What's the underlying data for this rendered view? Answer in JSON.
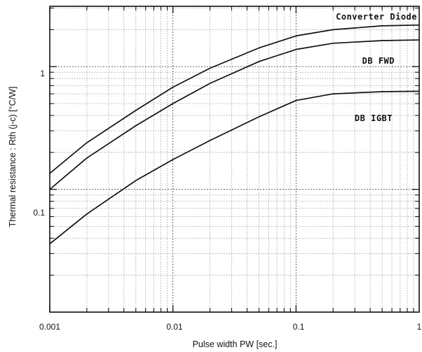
{
  "chart_data": {
    "type": "line",
    "title": "",
    "xlabel": "Pulse width  PW  [sec.]",
    "ylabel": "Thermal resistance  :  Rth (j-c)  [°C/W]",
    "xscale": "log",
    "yscale": "log",
    "xlim": [
      0.001,
      1
    ],
    "ylim": [
      0.01,
      3.1
    ],
    "grid": true,
    "x_tick_labels": [
      "0.001",
      "0.01",
      "0.1",
      "1"
    ],
    "y_tick_labels": [
      "0.1",
      "1"
    ],
    "series": [
      {
        "name": "Converter Diode",
        "label_position": "top-right",
        "points": [
          [
            0.001,
            0.135
          ],
          [
            0.002,
            0.24
          ],
          [
            0.005,
            0.44
          ],
          [
            0.01,
            0.68
          ],
          [
            0.02,
            0.97
          ],
          [
            0.05,
            1.42
          ],
          [
            0.1,
            1.78
          ],
          [
            0.2,
            2.0
          ],
          [
            0.5,
            2.15
          ],
          [
            1,
            2.18
          ]
        ]
      },
      {
        "name": "DB  FWD",
        "label_position": "upper-right",
        "points": [
          [
            0.001,
            0.1
          ],
          [
            0.002,
            0.18
          ],
          [
            0.005,
            0.33
          ],
          [
            0.01,
            0.5
          ],
          [
            0.02,
            0.73
          ],
          [
            0.05,
            1.1
          ],
          [
            0.1,
            1.38
          ],
          [
            0.2,
            1.55
          ],
          [
            0.5,
            1.63
          ],
          [
            1,
            1.65
          ]
        ]
      },
      {
        "name": "DB  IGBT",
        "label_position": "middle-right",
        "points": [
          [
            0.001,
            0.036
          ],
          [
            0.002,
            0.063
          ],
          [
            0.005,
            0.118
          ],
          [
            0.01,
            0.175
          ],
          [
            0.02,
            0.25
          ],
          [
            0.05,
            0.39
          ],
          [
            0.1,
            0.53
          ],
          [
            0.2,
            0.6
          ],
          [
            0.5,
            0.625
          ],
          [
            1,
            0.63
          ]
        ]
      }
    ],
    "line_color": "#111111",
    "grid_color": "#9a9a9a"
  }
}
